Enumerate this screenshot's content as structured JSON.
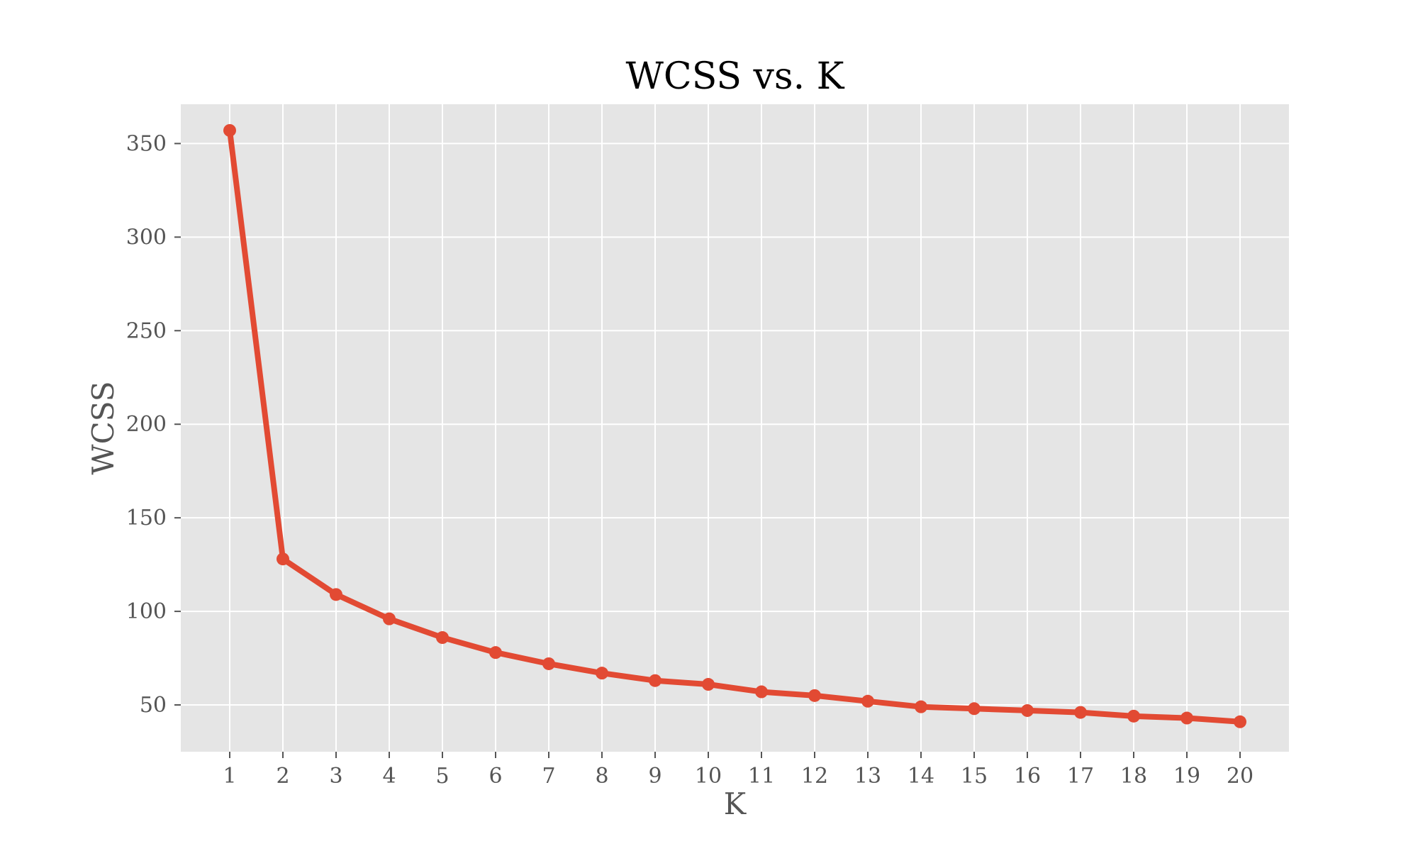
{
  "chart_data": {
    "type": "line",
    "title": "WCSS vs. K",
    "xlabel": "K",
    "ylabel": "WCSS",
    "x": [
      1,
      2,
      3,
      4,
      5,
      6,
      7,
      8,
      9,
      10,
      11,
      12,
      13,
      14,
      15,
      16,
      17,
      18,
      19,
      20
    ],
    "series": [
      {
        "values": [
          357,
          128,
          109,
          96,
          86,
          78,
          72,
          67,
          63,
          61,
          57,
          55,
          52,
          49,
          48,
          47,
          46,
          44,
          43,
          41
        ]
      }
    ],
    "xticks": [
      1,
      2,
      3,
      4,
      5,
      6,
      7,
      8,
      9,
      10,
      11,
      12,
      13,
      14,
      15,
      16,
      17,
      18,
      19,
      20
    ],
    "yticks": [
      50,
      100,
      150,
      200,
      250,
      300,
      350
    ],
    "xlim": [
      0.08,
      20.92
    ],
    "ylim": [
      25,
      371
    ],
    "grid": true,
    "legend": "none",
    "colors": {
      "line": "#E24A33",
      "plot_background": "#E5E5E5",
      "grid": "#FFFFFF",
      "text": "#555555",
      "title": "#000000"
    }
  }
}
